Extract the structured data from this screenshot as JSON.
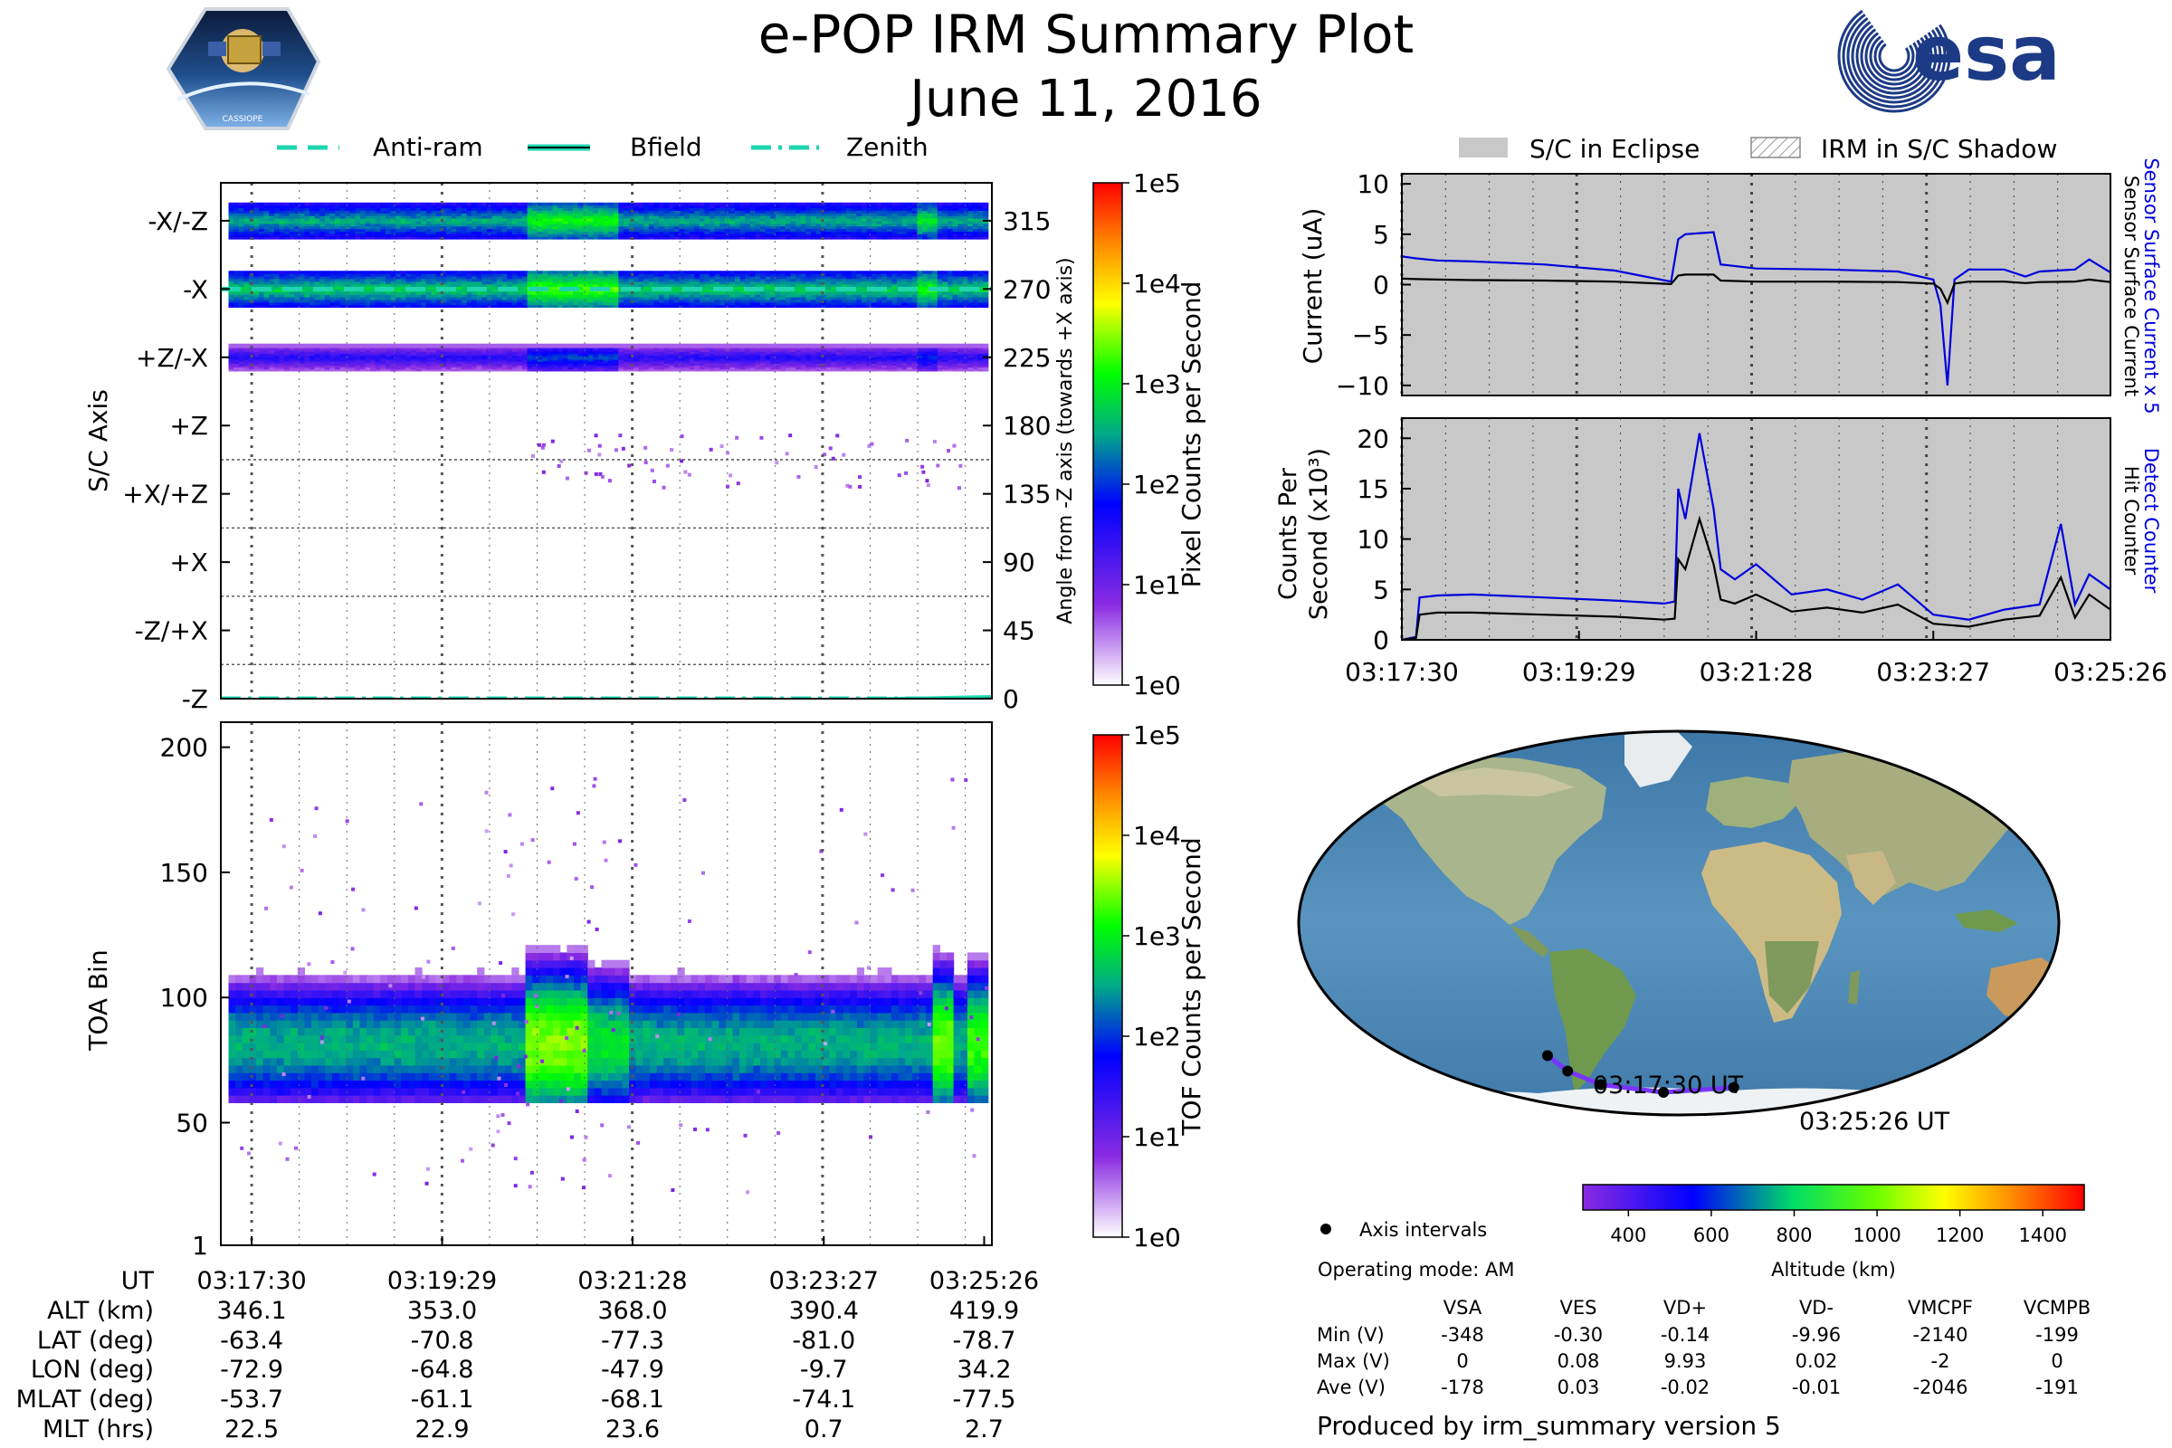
{
  "header": {
    "title": "e-POP IRM Summary Plot",
    "date": "June 11, 2016",
    "mission_logo": "cassiope-mission-patch",
    "mission_logo_text": "CASSIOPE",
    "agency_logo": "esa-logo",
    "agency_logo_text": "esa"
  },
  "colors": {
    "ram_line": "#1dd6b0",
    "current_black": "#000000",
    "current_blue": "#0000dd",
    "eclipse_fill": "#c8c8c8",
    "altitude_path": "#7a35ff",
    "colormap": [
      "#ffffff",
      "#8a2be2",
      "#0000ff",
      "#00aa88",
      "#00ff00",
      "#ffff00",
      "#ff8800",
      "#ff0000"
    ]
  },
  "chart_data": [
    {
      "id": "angle_spectrogram",
      "type": "heatmap",
      "legend": [
        "Anti-ram",
        "Bfield",
        "Zenith"
      ],
      "ylabel_left": "S/C Axis",
      "ylabel_right": "Angle from -Z axis (towards +X axis)",
      "y_axis_labels": [
        "-X/-Z",
        "-X",
        "+Z/-X",
        "+Z",
        "+X/+Z",
        "+X",
        "-Z/+X",
        "-Z"
      ],
      "y_axis_angles": [
        "315",
        "270",
        "225",
        "180",
        "135",
        "90",
        "45",
        "0"
      ],
      "angle_range": [
        0,
        340
      ],
      "bands": [
        {
          "center_deg": 315,
          "half_width_deg": 12,
          "level": 2.6
        },
        {
          "center_deg": 270,
          "half_width_deg": 12,
          "level": 2.8
        },
        {
          "center_deg": 225,
          "half_width_deg": 9,
          "level": 1.6
        }
      ],
      "burst_interval": {
        "start_frac": 0.39,
        "end_frac": 0.51
      },
      "lines": {
        "anti_ram_deg": 270,
        "zenith_deg": 0,
        "bfield_deg": [
          -10,
          0
        ]
      },
      "colorbar": {
        "label": "Pixel Counts per Second",
        "ticks": [
          "1e0",
          "1e1",
          "1e2",
          "1e3",
          "1e4",
          "1e5"
        ]
      }
    },
    {
      "id": "toa_spectrogram",
      "type": "heatmap",
      "ylabel": "TOA Bin",
      "y_ticks": [
        "1",
        "50",
        "100",
        "150",
        "200"
      ],
      "ylim": [
        1,
        210
      ],
      "colorbar": {
        "label": "TOF Counts per Second",
        "ticks": [
          "1e0",
          "1e1",
          "1e2",
          "1e3",
          "1e4",
          "1e5"
        ]
      }
    },
    {
      "id": "sensor_current",
      "type": "line",
      "legend": [
        "S/C in Eclipse",
        "IRM in S/C Shadow"
      ],
      "ylabel": "Current (uA)",
      "right_label_blue": "Sensor Surface Current x 5",
      "right_label_black": "Sensor Surface Current",
      "ylim": [
        -11,
        11
      ],
      "y_ticks": [
        "10",
        "5",
        "0",
        "−5",
        "−10"
      ],
      "y_tick_values": [
        10,
        5,
        0,
        -5,
        -10
      ],
      "x": [
        0,
        0.02,
        0.05,
        0.1,
        0.2,
        0.3,
        0.38,
        0.39,
        0.4,
        0.44,
        0.45,
        0.5,
        0.6,
        0.7,
        0.75,
        0.76,
        0.77,
        0.78,
        0.8,
        0.85,
        0.88,
        0.9,
        0.95,
        0.97,
        1.0
      ],
      "series": [
        {
          "name": "Sensor Surface Current x 5",
          "color": "blue",
          "values": [
            2.8,
            2.6,
            2.4,
            2.3,
            2.0,
            1.4,
            0.3,
            4.5,
            5.0,
            5.2,
            2.0,
            1.6,
            1.5,
            1.3,
            0.5,
            -2.0,
            -10.0,
            0.5,
            1.5,
            1.5,
            0.8,
            1.3,
            1.5,
            2.5,
            1.2
          ]
        },
        {
          "name": "Sensor Surface Current",
          "color": "black",
          "values": [
            0.6,
            0.55,
            0.5,
            0.45,
            0.4,
            0.3,
            0.05,
            0.9,
            1.0,
            1.0,
            0.4,
            0.3,
            0.3,
            0.25,
            0.1,
            -0.4,
            -1.8,
            0.1,
            0.3,
            0.3,
            0.15,
            0.25,
            0.3,
            0.5,
            0.25
          ]
        }
      ]
    },
    {
      "id": "counts_per_second",
      "type": "line",
      "ylabel_line1": "Counts Per",
      "ylabel_line2": "Second (x10³)",
      "right_label_blue": "Detect Counter",
      "right_label_black": "Hit Counter",
      "ylim": [
        0,
        22
      ],
      "y_ticks": [
        "20",
        "15",
        "10",
        "5",
        "0"
      ],
      "y_tick_values": [
        20,
        15,
        10,
        5,
        0
      ],
      "x_ticks": [
        "03:17:30",
        "03:19:29",
        "03:21:28",
        "03:23:27",
        "03:25:26"
      ],
      "x": [
        0,
        0.02,
        0.025,
        0.05,
        0.1,
        0.2,
        0.3,
        0.37,
        0.385,
        0.39,
        0.4,
        0.42,
        0.44,
        0.45,
        0.47,
        0.5,
        0.55,
        0.6,
        0.65,
        0.7,
        0.75,
        0.8,
        0.85,
        0.9,
        0.93,
        0.95,
        0.97,
        1.0
      ],
      "series": [
        {
          "name": "Detect Counter",
          "color": "blue",
          "values": [
            0,
            0.3,
            4.2,
            4.4,
            4.5,
            4.2,
            3.9,
            3.6,
            3.8,
            15.0,
            12.0,
            20.5,
            13.0,
            7.0,
            6.0,
            7.5,
            4.5,
            5.0,
            4.0,
            5.5,
            2.5,
            2.0,
            3.0,
            3.5,
            11.5,
            3.5,
            6.5,
            5.0
          ]
        },
        {
          "name": "Hit Counter",
          "color": "black",
          "values": [
            0,
            0.2,
            2.5,
            2.7,
            2.7,
            2.5,
            2.3,
            2.0,
            2.1,
            8.0,
            7.0,
            12.0,
            7.5,
            4.0,
            3.6,
            4.5,
            2.8,
            3.2,
            2.7,
            3.5,
            1.6,
            1.3,
            2.0,
            2.4,
            6.2,
            2.2,
            4.5,
            3.0
          ]
        }
      ]
    },
    {
      "id": "orbit_map",
      "type": "scatter",
      "start_label": "03:17:30 UT",
      "end_label": "03:25:26 UT",
      "track": [
        {
          "lon": -72.9,
          "lat": -63.4
        },
        {
          "lon": -64.8,
          "lat": -70.8
        },
        {
          "lon": -47.9,
          "lat": -77.3
        },
        {
          "lon": -9.7,
          "lat": -81.0
        },
        {
          "lon": 34.2,
          "lat": -78.7
        }
      ],
      "axis_intervals_label": "Axis intervals",
      "operating_mode": "Operating mode: AM",
      "altitude_colorbar": {
        "label": "Altitude (km)",
        "ticks": [
          "400",
          "600",
          "800",
          "1000",
          "1200",
          "1400"
        ],
        "tick_values": [
          400,
          600,
          800,
          1000,
          1200,
          1400
        ],
        "range": [
          290,
          1500
        ]
      }
    }
  ],
  "ut_table": {
    "row_labels": [
      "UT",
      "ALT (km)",
      "LAT (deg)",
      "LON (deg)",
      "MLAT (deg)",
      "MLT (hrs)"
    ],
    "columns": [
      [
        "03:17:30",
        "346.1",
        "-63.4",
        "-72.9",
        "-53.7",
        "22.5"
      ],
      [
        "03:19:29",
        "353.0",
        "-70.8",
        "-64.8",
        "-61.1",
        "22.9"
      ],
      [
        "03:21:28",
        "368.0",
        "-77.3",
        "-47.9",
        "-68.1",
        "23.6"
      ],
      [
        "03:23:27",
        "390.4",
        "-81.0",
        "-9.7",
        "-74.1",
        "0.7"
      ],
      [
        "03:25:26",
        "419.9",
        "-78.7",
        "34.2",
        "-77.5",
        "2.7"
      ]
    ]
  },
  "voltage_table": {
    "headers": [
      "VSA",
      "VES",
      "VD+",
      "VD-",
      "VMCPF",
      "VCMPB"
    ],
    "rows": [
      {
        "label": "Min (V)",
        "values": [
          "-348",
          "-0.30",
          "-0.14",
          "-9.96",
          "-2140",
          "-199"
        ]
      },
      {
        "label": "Max (V)",
        "values": [
          "0",
          "0.08",
          "9.93",
          "0.02",
          "-2",
          "0"
        ]
      },
      {
        "label": "Ave (V)",
        "values": [
          "-178",
          "0.03",
          "-0.02",
          "-0.01",
          "-2046",
          "-191"
        ]
      }
    ]
  },
  "footer": "Produced by irm_summary version 5"
}
